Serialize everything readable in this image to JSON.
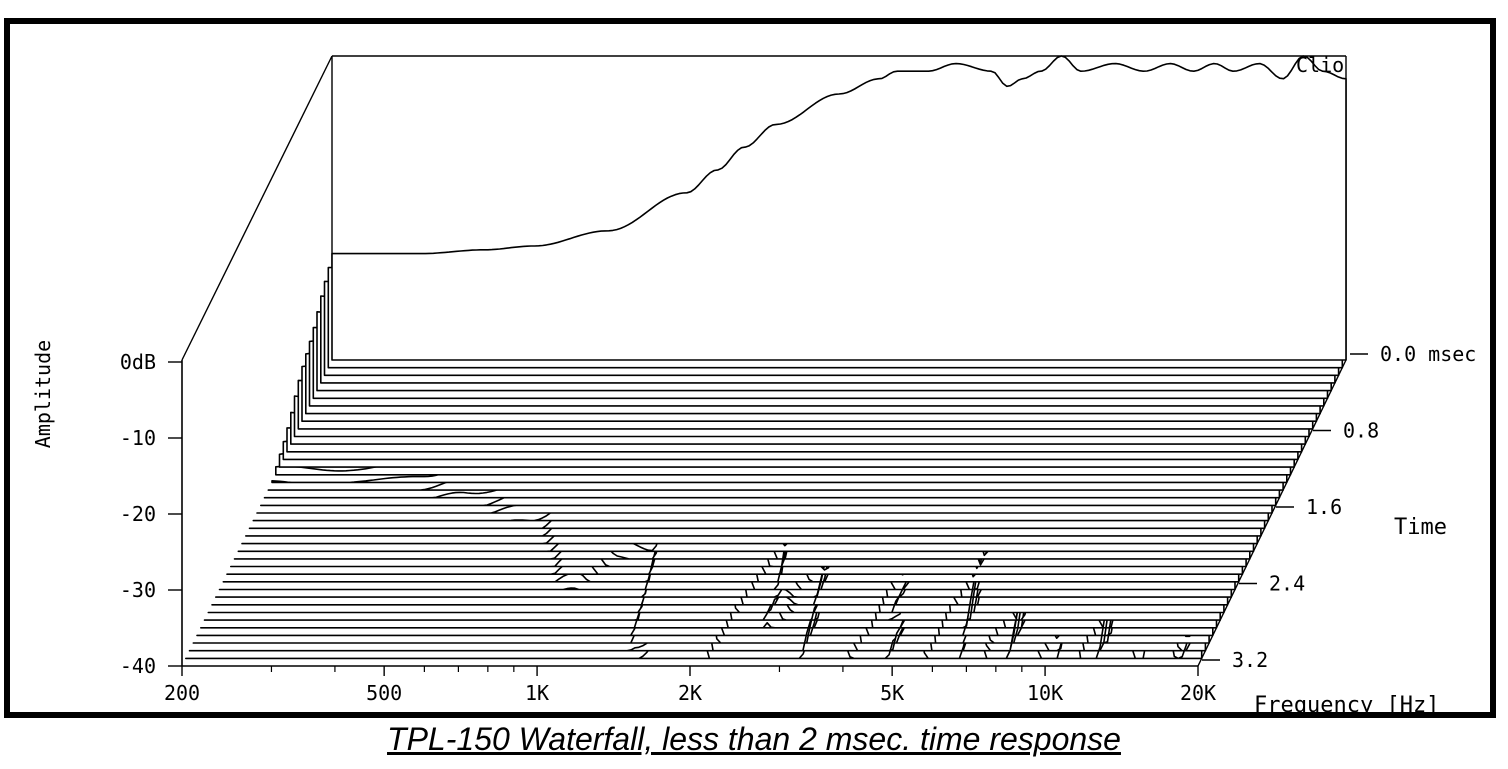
{
  "caption": "TPL-150 Waterfall, less than 2 msec. time response",
  "chart_data": {
    "type": "waterfall",
    "title": "",
    "watermark": "Clio",
    "ylabel": "Amplitude",
    "xlabel": "Frequency [Hz]",
    "zlabel": "Time",
    "x_scale": "log",
    "xlim": [
      200,
      20000
    ],
    "ylim": [
      -40,
      0
    ],
    "zlim": [
      0.0,
      3.2
    ],
    "x_ticks": [
      {
        "v": 200,
        "label": "200"
      },
      {
        "v": 500,
        "label": "500"
      },
      {
        "v": 1000,
        "label": "1K"
      },
      {
        "v": 2000,
        "label": "2K"
      },
      {
        "v": 5000,
        "label": "5K"
      },
      {
        "v": 10000,
        "label": "10K"
      },
      {
        "v": 20000,
        "label": "20K"
      }
    ],
    "x_minor": [
      300,
      400,
      600,
      700,
      800,
      900,
      3000,
      4000,
      6000,
      7000,
      8000,
      9000
    ],
    "y_ticks": [
      {
        "v": 0,
        "label": "0dB"
      },
      {
        "v": -10,
        "label": "-10"
      },
      {
        "v": -20,
        "label": "-20"
      },
      {
        "v": -30,
        "label": "-30"
      },
      {
        "v": -40,
        "label": "-40"
      }
    ],
    "z_ticks": [
      {
        "v": 0.0,
        "label": "0.0 msec"
      },
      {
        "v": 0.8,
        "label": "0.8"
      },
      {
        "v": 1.6,
        "label": "1.6"
      },
      {
        "v": 2.4,
        "label": "2.4"
      },
      {
        "v": 3.2,
        "label": "3.2"
      }
    ],
    "slice_count": 40,
    "slice_step_ms": 0.08,
    "freq_points": [
      200,
      250,
      300,
      400,
      500,
      700,
      1000,
      1150,
      1300,
      1500,
      2000,
      2400,
      2600,
      3000,
      3400,
      4000,
      4300,
      4600,
      5000,
      5500,
      6000,
      7000,
      8000,
      9000,
      10000,
      11000,
      12000,
      13500,
      15000,
      16500,
      18000,
      20000
    ],
    "response_at_0ms_db": [
      -2,
      -2,
      -2,
      -1.5,
      -1,
      1,
      6,
      9,
      12,
      15,
      19,
      21,
      22,
      22,
      23,
      22,
      20,
      21,
      22,
      24,
      22,
      23,
      22,
      23,
      22,
      23,
      22,
      23,
      21,
      24,
      22,
      21
    ],
    "decay_db_per_ms": [
      11,
      11,
      11,
      10.5,
      10,
      10,
      9,
      12,
      14,
      10,
      9,
      18,
      14,
      16,
      12,
      11,
      15,
      14,
      12,
      10,
      17,
      11,
      14,
      10,
      13,
      10,
      14,
      10,
      12,
      9,
      12,
      10
    ]
  }
}
